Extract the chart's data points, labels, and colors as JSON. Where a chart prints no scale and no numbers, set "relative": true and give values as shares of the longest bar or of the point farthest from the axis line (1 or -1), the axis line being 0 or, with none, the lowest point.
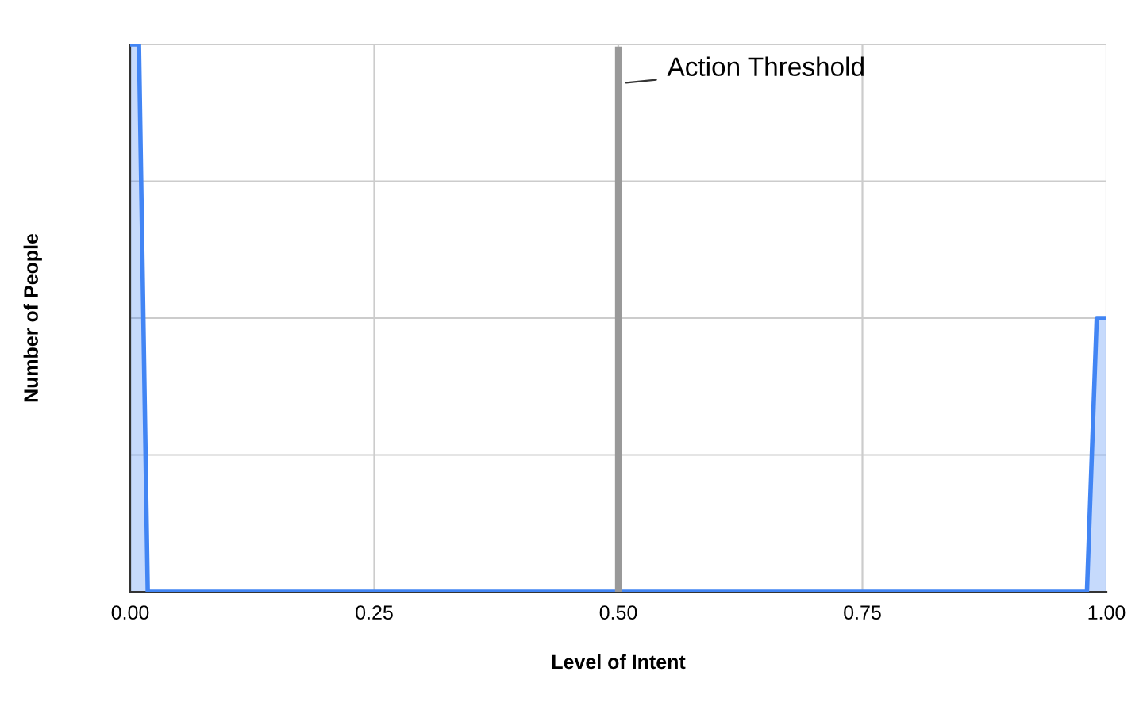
{
  "chart_data": {
    "type": "area",
    "xlabel": "Level of Intent",
    "ylabel": "Number of People",
    "relative": true,
    "x": [
      0,
      0.009,
      0.018,
      0.98,
      0.99,
      1.0
    ],
    "series": [
      {
        "color": "#4285f4",
        "values": [
          1,
          1,
          0,
          0,
          0.5,
          0.5
        ]
      }
    ],
    "xlim": [
      0,
      1
    ],
    "xticks": [
      {
        "value": 0,
        "label": "0.00"
      },
      {
        "value": 0.25,
        "label": "0.25"
      },
      {
        "value": 0.5,
        "label": "0.50"
      },
      {
        "value": 0.75,
        "label": "0.75"
      },
      {
        "value": 1,
        "label": "1.00"
      }
    ],
    "ref_lines": [
      {
        "axis": "x",
        "value": 0.5,
        "label": "Action Threshold",
        "color": "#999999"
      }
    ],
    "grid": true,
    "tick_labels": "x"
  }
}
